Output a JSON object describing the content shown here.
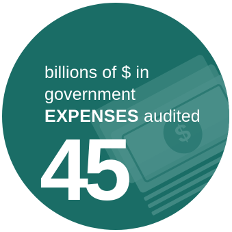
{
  "badge": {
    "caption_line1": "billions of $ in",
    "caption_line2": "government",
    "caption_emphasis": "EXPENSES",
    "caption_tail": "audited",
    "value": "45"
  },
  "colors": {
    "circle": "#1a6d66",
    "money_tint": "#4a8f89",
    "text": "#ffffff"
  },
  "icons": [
    "money-stack-icon",
    "dollar-sign-icon"
  ]
}
